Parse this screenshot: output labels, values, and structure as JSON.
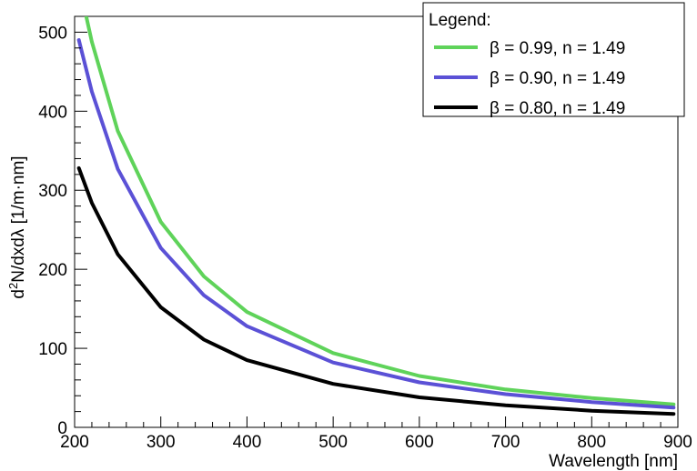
{
  "chart_data": {
    "type": "line",
    "xlabel": "Wavelength [nm]",
    "ylabel_parts": {
      "pre": "d",
      "sup": "2",
      "post": "N/dxdλ [1/m·nm]"
    },
    "xlim": [
      200,
      900
    ],
    "ylim": [
      0,
      520
    ],
    "x_ticks": [
      200,
      300,
      400,
      500,
      600,
      700,
      800,
      900
    ],
    "y_ticks": [
      0,
      100,
      200,
      300,
      400,
      500
    ],
    "x": [
      205,
      220,
      250,
      300,
      350,
      400,
      500,
      600,
      700,
      800,
      895
    ],
    "series": [
      {
        "name": "β = 0.99, n = 1.49",
        "color": "#5fd35a",
        "values": [
          562,
          488,
          375,
          260,
          191,
          146,
          94,
          65,
          48,
          37,
          29
        ]
      },
      {
        "name": "β = 0.90, n = 1.49",
        "color": "#5b51d6",
        "values": [
          490,
          425,
          327,
          227,
          167,
          128,
          82,
          57,
          42,
          32,
          25
        ]
      },
      {
        "name": "β = 0.80, n = 1.49",
        "color": "#000000",
        "values": [
          328,
          284,
          219,
          152,
          111,
          85,
          55,
          38,
          28,
          21,
          17
        ]
      }
    ],
    "legend_title": "Legend:",
    "legend_position": "top-right",
    "grid": false
  }
}
